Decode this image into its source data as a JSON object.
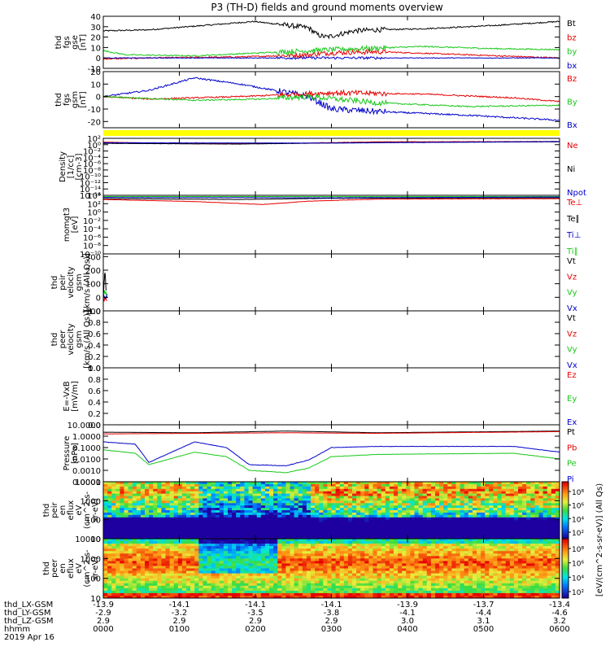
{
  "title": "P3 (TH-D) fields and ground moments overview",
  "colors": {
    "black": "#000000",
    "red": "#e60000",
    "green": "#19c819",
    "blue": "#0000c8",
    "yellow": "#ffff00"
  },
  "chart_data": {
    "type": "line",
    "x_axis": {
      "tick_labels": [
        "0000",
        "0100",
        "0200",
        "0300",
        "0400",
        "0500",
        "0600"
      ],
      "rows": [
        {
          "name": "thd_LX-GSM",
          "values": [
            "-13.9",
            "-14.1",
            "-14.1",
            "-14.1",
            "-13.9",
            "-13.7",
            "-13.4"
          ]
        },
        {
          "name": "thd_LY-GSM",
          "values": [
            "-2.9",
            "-3.2",
            "-3.5",
            "-3.8",
            "-4.1",
            "-4.4",
            "-4.6"
          ]
        },
        {
          "name": "thd_LZ-GSM",
          "values": [
            "2.9",
            "2.9",
            "2.9",
            "2.9",
            "3.0",
            "3.1",
            "3.2"
          ]
        },
        {
          "name": "hhmm",
          "values": [
            "0000",
            "0100",
            "0200",
            "0300",
            "0400",
            "0500",
            "0600"
          ]
        }
      ],
      "date": "2019 Apr 16"
    },
    "panels": [
      {
        "id": "fgs-gse",
        "ylabel_lines": [
          "thd",
          "fgs",
          "gse",
          "[nT]"
        ],
        "yticks": [
          "40",
          "30",
          "20",
          "10",
          "0",
          "-10"
        ],
        "yrange": [
          -10,
          40
        ],
        "legend": [
          {
            "text": "Bt",
            "color": "black"
          },
          {
            "text": "bz",
            "color": "red"
          },
          {
            "text": "by",
            "color": "green"
          },
          {
            "text": "bx",
            "color": "blue"
          }
        ],
        "series": [
          {
            "name": "Bt",
            "color": "black",
            "noise": 0.6,
            "x": [
              0,
              0.1,
              0.33,
              0.45,
              0.47,
              0.49,
              0.55,
              0.6,
              0.7,
              0.85,
              1.0
            ],
            "y": [
              26,
              27,
              35,
              29,
              22,
              20,
              26,
              27,
              28,
              31,
              35
            ]
          },
          {
            "name": "bz",
            "color": "red",
            "noise": 0.6,
            "x": [
              0,
              0.1,
              0.3,
              0.45,
              0.5,
              0.6,
              0.8,
              1.0
            ],
            "y": [
              -1,
              0,
              1,
              3,
              5,
              6,
              3,
              0
            ]
          },
          {
            "name": "by",
            "color": "green",
            "noise": 0.6,
            "x": [
              0,
              0.05,
              0.2,
              0.3,
              0.5,
              0.7,
              0.85,
              1.0
            ],
            "y": [
              7,
              3,
              2,
              4,
              8,
              11,
              9,
              8
            ]
          },
          {
            "name": "bx",
            "color": "blue",
            "noise": 0.3,
            "x": [
              0,
              1.0
            ],
            "y": [
              0,
              0
            ]
          }
        ]
      },
      {
        "id": "fgs-gsm",
        "ylabel_lines": [
          "thd",
          "fgs",
          "gsm",
          "[nT]"
        ],
        "yticks": [
          "20",
          "10",
          "0",
          "-10",
          "-20"
        ],
        "yrange": [
          -25,
          20
        ],
        "legend": [
          {
            "text": "Bz",
            "color": "red"
          },
          {
            "text": "By",
            "color": "green"
          },
          {
            "text": "Bx",
            "color": "blue"
          }
        ],
        "series": [
          {
            "name": "Bx",
            "color": "blue",
            "noise": 0.7,
            "x": [
              0,
              0.1,
              0.2,
              0.3,
              0.45,
              0.5,
              0.6,
              0.8,
              1.0
            ],
            "y": [
              0,
              5,
              15,
              10,
              0,
              -10,
              -12,
              -15,
              -19
            ]
          },
          {
            "name": "Bz",
            "color": "red",
            "noise": 0.6,
            "x": [
              0,
              0.1,
              0.3,
              0.5,
              0.7,
              0.9,
              1.0
            ],
            "y": [
              0,
              -2,
              0,
              3,
              2,
              -1,
              -4
            ]
          },
          {
            "name": "By",
            "color": "green",
            "noise": 0.6,
            "x": [
              0,
              0.2,
              0.35,
              0.45,
              0.6,
              0.8,
              1.0
            ],
            "y": [
              0,
              -3,
              -2,
              0,
              -5,
              -8,
              -7
            ]
          }
        ]
      },
      {
        "id": "density",
        "ylabel_lines": [
          "Density",
          "[1/cc]",
          "[cm-3]"
        ],
        "yticks": [
          "10²",
          "10⁰",
          "10⁻²",
          "10⁻⁴",
          "10⁻⁶",
          "10⁻⁸",
          "10⁻¹⁰",
          "10⁻¹²",
          "10⁻¹⁴",
          "10⁻¹⁶"
        ],
        "yrange": [
          -16,
          2
        ],
        "log": true,
        "legend": [
          {
            "text": "Ne",
            "color": "red"
          },
          {
            "text": "Ni",
            "color": "black"
          },
          {
            "text": "Npot",
            "color": "blue"
          }
        ],
        "series": [
          {
            "name": "Ne",
            "color": "red",
            "noise": 0.15,
            "x": [
              0,
              0.2,
              0.4,
              0.6,
              1.0
            ],
            "y": [
              0.8,
              0.3,
              0.4,
              0.9,
              1.0
            ]
          },
          {
            "name": "Ni",
            "color": "black",
            "noise": 0.1,
            "x": [
              0,
              0.3,
              0.6,
              1.0
            ],
            "y": [
              0.4,
              0.2,
              0.7,
              0.9
            ]
          },
          {
            "name": "Npot",
            "color": "blue",
            "noise": 0.1,
            "x": [
              0,
              0.5,
              1.0
            ],
            "y": [
              0.6,
              0.5,
              1.0
            ]
          }
        ]
      },
      {
        "id": "moms-temp",
        "ylabel_lines": [
          "momgt3",
          "[eV]"
        ],
        "yticks": [
          "10⁴",
          "10²",
          "10⁰",
          "10⁻²",
          "10⁻⁴",
          "10⁻⁶",
          "10⁻⁸",
          "10⁻¹⁰"
        ],
        "yrange": [
          -10,
          4
        ],
        "log": true,
        "legend": [
          {
            "text": "Te⊥",
            "color": "red"
          },
          {
            "text": "Te∥",
            "color": "black"
          },
          {
            "text": "Ti⊥",
            "color": "blue"
          },
          {
            "text": "Ti∥",
            "color": "green"
          }
        ],
        "series": [
          {
            "name": "Ti∥",
            "color": "green",
            "noise": 0.05,
            "x": [
              0,
              1.0
            ],
            "y": [
              3.7,
              3.7
            ]
          },
          {
            "name": "Te∥",
            "color": "black",
            "noise": 0.1,
            "x": [
              0,
              0.3,
              0.5,
              1.0
            ],
            "y": [
              3.2,
              3.0,
              3.3,
              3.4
            ]
          },
          {
            "name": "Te⊥",
            "color": "red",
            "noise": 0.15,
            "x": [
              0,
              0.2,
              0.35,
              0.45,
              0.6,
              1.0
            ],
            "y": [
              3.0,
              2.5,
              1.8,
              2.6,
              3.1,
              3.2
            ]
          },
          {
            "name": "Ti⊥",
            "color": "blue",
            "noise": 0.1,
            "x": [
              0,
              0.5,
              1.0
            ],
            "y": [
              3.5,
              3.4,
              3.6
            ]
          }
        ]
      },
      {
        "id": "peir-velocity",
        "ylabel_lines": [
          "thd",
          "peir",
          "velocity",
          "gsm",
          "[km/s (All Qs)]"
        ],
        "yticks": [
          "300",
          "200",
          "100",
          "0",
          "-100"
        ],
        "yrange": [
          -100,
          320
        ],
        "legend": [
          {
            "text": "Vt",
            "color": "black"
          },
          {
            "text": "Vz",
            "color": "red"
          },
          {
            "text": "Vy",
            "color": "green"
          },
          {
            "text": "Vx",
            "color": "blue"
          }
        ],
        "series": [
          {
            "name": "Vt",
            "color": "black",
            "noise": 2,
            "x": [
              0,
              0.002,
              0.004,
              0.006
            ],
            "y": [
              0,
              120,
              200,
              60
            ]
          },
          {
            "name": "Vz",
            "color": "red",
            "noise": 2,
            "x": [
              0,
              0.004,
              0.008
            ],
            "y": [
              -40,
              0,
              -30
            ]
          },
          {
            "name": "Vy",
            "color": "green",
            "noise": 2,
            "x": [
              0,
              0.004,
              0.008
            ],
            "y": [
              20,
              40,
              10
            ]
          },
          {
            "name": "Vx",
            "color": "blue",
            "noise": 2,
            "x": [
              0,
              0.004,
              0.008
            ],
            "y": [
              10,
              -10,
              20
            ]
          }
        ]
      },
      {
        "id": "peer-velocity",
        "ylabel_lines": [
          "thd",
          "peer",
          "velocity",
          "gsm",
          "[km/s (All Qs)]"
        ],
        "yticks": [
          "1.0",
          "0.8",
          "0.6",
          "0.4",
          "0.2",
          "0.0"
        ],
        "yrange": [
          0,
          1
        ],
        "legend": [
          {
            "text": "Vt",
            "color": "black"
          },
          {
            "text": "Vz",
            "color": "red"
          },
          {
            "text": "Vy",
            "color": "green"
          },
          {
            "text": "Vx",
            "color": "blue"
          }
        ],
        "series": []
      },
      {
        "id": "efield",
        "ylabel_lines": [
          "E=-VxB",
          "[mV/m]"
        ],
        "yticks": [
          "1.0",
          "0.8",
          "0.6",
          "0.4",
          "0.2",
          "0.0"
        ],
        "yrange": [
          0,
          1
        ],
        "legend": [
          {
            "text": "Ez",
            "color": "red"
          },
          {
            "text": "Ey",
            "color": "green"
          },
          {
            "text": "Ex",
            "color": "blue"
          }
        ],
        "series": []
      },
      {
        "id": "pressure",
        "ylabel_lines": [
          "Pressure",
          "[nPa]"
        ],
        "yticks": [
          "10.0000",
          "1.0000",
          "0.1000",
          "0.0100",
          "0.0010",
          "0.0001"
        ],
        "yrange": [
          -4,
          1
        ],
        "log": true,
        "legend": [
          {
            "text": "Pt",
            "color": "black"
          },
          {
            "text": "Pb",
            "color": "red"
          },
          {
            "text": "Pe",
            "color": "green"
          },
          {
            "text": "Pi",
            "color": "blue"
          }
        ],
        "series": [
          {
            "name": "Pt",
            "color": "black",
            "noise": 0.05,
            "x": [
              0,
              0.2,
              0.4,
              0.6,
              1.0
            ],
            "y": [
              0.35,
              0.3,
              0.45,
              0.3,
              0.45
            ]
          },
          {
            "name": "Pb",
            "color": "red",
            "noise": 0.05,
            "x": [
              0,
              0.2,
              0.4,
              0.6,
              1.0
            ],
            "y": [
              0.2,
              0.25,
              0.3,
              0.25,
              0.4
            ]
          },
          {
            "name": "Pi",
            "color": "blue",
            "noise": 0.15,
            "x": [
              0,
              0.07,
              0.1,
              0.2,
              0.27,
              0.32,
              0.4,
              0.45,
              0.5,
              0.6,
              0.9,
              1.0
            ],
            "y": [
              -0.5,
              -0.7,
              -2.3,
              -0.5,
              -1.0,
              -2.5,
              -2.6,
              -2.1,
              -1.0,
              -0.9,
              -0.9,
              -1.4
            ]
          },
          {
            "name": "Pe",
            "color": "green",
            "noise": 0.15,
            "x": [
              0,
              0.07,
              0.1,
              0.2,
              0.27,
              0.32,
              0.4,
              0.45,
              0.5,
              0.6,
              0.9,
              1.0
            ],
            "y": [
              -1.2,
              -1.5,
              -2.5,
              -1.4,
              -1.8,
              -3.0,
              -3.2,
              -2.8,
              -1.8,
              -1.6,
              -1.5,
              -2.0
            ]
          }
        ]
      }
    ],
    "spectrograms": [
      {
        "id": "peir-eflux",
        "ylabel_lines": [
          "thd",
          "peir",
          "en",
          "eflux",
          "eV",
          "(cm^2-s-",
          "sr-eV)"
        ],
        "yticks": [
          "10000",
          "1000",
          "100",
          "10"
        ],
        "yrange": [
          0.5,
          4.3
        ],
        "log": true,
        "colorbar_label": "[eV/(cm^2-s-sr-eV)]  (All Qs)",
        "colorbar_ticks": [
          "10⁸",
          "10⁶",
          "10⁴",
          "10²"
        ],
        "colorbar_range": [
          1,
          8.5
        ]
      },
      {
        "id": "peer-eflux",
        "ylabel_lines": [
          "thd",
          "peer",
          "en",
          "eflux",
          "eV",
          "(cm^2-s-",
          "sr-eV)"
        ],
        "yticks": [
          "10000",
          "1000",
          "100",
          "10"
        ],
        "yrange": [
          0.8,
          4.5
        ],
        "log": true,
        "colorbar_label": "[eV/(cm^2-s-sr-eV)]",
        "colorbar_ticks": [
          "10⁸",
          "10⁶",
          "10⁴",
          "10²"
        ],
        "colorbar_range": [
          1,
          8.5
        ]
      }
    ]
  }
}
